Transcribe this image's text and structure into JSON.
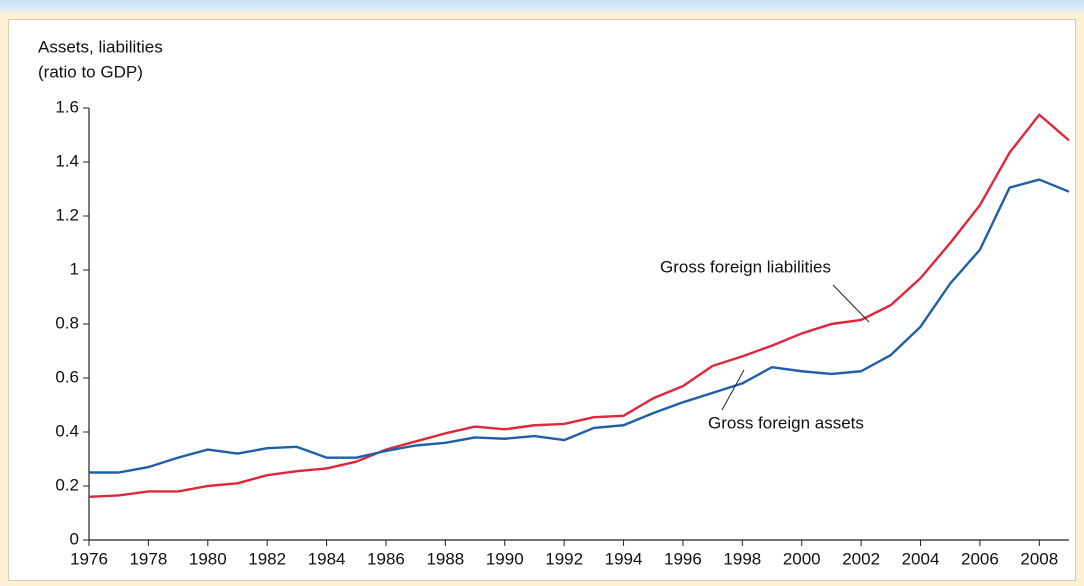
{
  "chart_data": {
    "type": "line",
    "ylabel": [
      "Assets, liabilities",
      "(ratio to GDP)"
    ],
    "x": [
      1976,
      1977,
      1978,
      1979,
      1980,
      1981,
      1982,
      1983,
      1984,
      1985,
      1986,
      1987,
      1988,
      1989,
      1990,
      1991,
      1992,
      1993,
      1994,
      1995,
      1996,
      1997,
      1998,
      1999,
      2000,
      2001,
      2002,
      2003,
      2004,
      2005,
      2006,
      2007,
      2008,
      2009
    ],
    "series": [
      {
        "name": "Gross foreign liabilities",
        "color": "#e0263a",
        "values": [
          0.16,
          0.165,
          0.18,
          0.18,
          0.2,
          0.21,
          0.24,
          0.255,
          0.265,
          0.29,
          0.335,
          0.365,
          0.395,
          0.42,
          0.41,
          0.425,
          0.43,
          0.455,
          0.46,
          0.525,
          0.57,
          0.645,
          0.68,
          0.72,
          0.765,
          0.8,
          0.815,
          0.87,
          0.97,
          1.1,
          1.24,
          1.435,
          1.575,
          1.48
        ]
      },
      {
        "name": "Gross foreign assets",
        "color": "#1f5fa8",
        "values": [
          0.25,
          0.25,
          0.27,
          0.305,
          0.335,
          0.32,
          0.34,
          0.345,
          0.305,
          0.305,
          0.33,
          0.35,
          0.36,
          0.38,
          0.375,
          0.385,
          0.37,
          0.415,
          0.425,
          0.47,
          0.51,
          0.545,
          0.58,
          0.64,
          0.625,
          0.615,
          0.625,
          0.685,
          0.79,
          0.95,
          1.075,
          1.305,
          1.335,
          1.29
        ]
      }
    ],
    "xlim": [
      1976,
      2009
    ],
    "xticks": [
      1976,
      1978,
      1980,
      1982,
      1984,
      1986,
      1988,
      1990,
      1992,
      1994,
      1996,
      1998,
      2000,
      2002,
      2004,
      2006,
      2008
    ],
    "ylim": [
      0,
      1.6
    ],
    "yticks": [
      0,
      0.2,
      0.4,
      0.6,
      0.8,
      1,
      1.2,
      1.4,
      1.6
    ],
    "grid": false,
    "legend": "annotations"
  }
}
